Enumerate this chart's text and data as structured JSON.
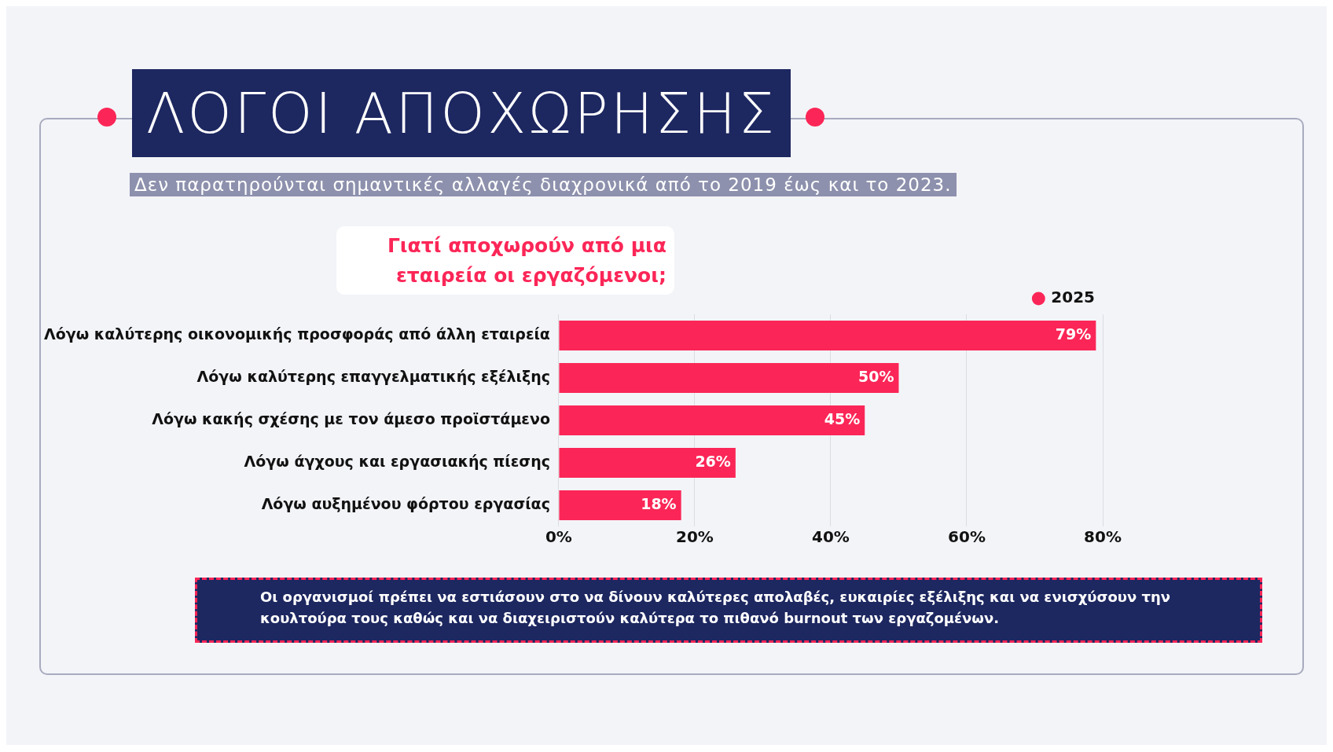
{
  "chart_data": {
    "type": "bar",
    "orientation": "horizontal",
    "title": "ΛΟΓΟΙ ΑΠΟΧΩΡΗΣΗΣ",
    "subtitle": "Δεν παρατηρούνται σημαντικές αλλαγές διαχρονικά από το 2019 έως και το 2023.",
    "annotations": [
      "Γιατί αποχωρούν από μια εταιρεία οι εργαζόμενοι;",
      "Οι οργανισμοί πρέπει να εστιάσουν στο να δίνουν καλύτερες απολαβές, ευκαιρίες εξέλιξης και να ενισχύσουν την κουλτούρα τους καθώς και να διαχειριστούν καλύτερα το πιθανό burnout των εργαζομένων."
    ],
    "categories": [
      "Λόγω καλύτερης οικονομικής προσφοράς από άλλη εταιρεία",
      "Λόγω καλύτερης επαγγελματικής εξέλιξης",
      "Λόγω κακής σχέσης με τον άμεσο προϊστάμενο",
      "Λόγω άγχους και εργασιακής πίεσης",
      "Λόγω αυξημένου φόρτου εργασίας"
    ],
    "series": [
      {
        "name": "2025",
        "color": "#fb2657",
        "values": [
          79,
          50,
          45,
          26,
          18
        ],
        "value_labels": [
          "79%",
          "50%",
          "45%",
          "26%",
          "18%"
        ]
      }
    ],
    "xlim": [
      0,
      80
    ],
    "xticks": [
      {
        "value": 0,
        "label": "0%"
      },
      {
        "value": 20,
        "label": "20%"
      },
      {
        "value": 40,
        "label": "40%"
      },
      {
        "value": 60,
        "label": "60%"
      },
      {
        "value": 80,
        "label": "80%"
      }
    ],
    "grid": "x",
    "legend": "top"
  }
}
